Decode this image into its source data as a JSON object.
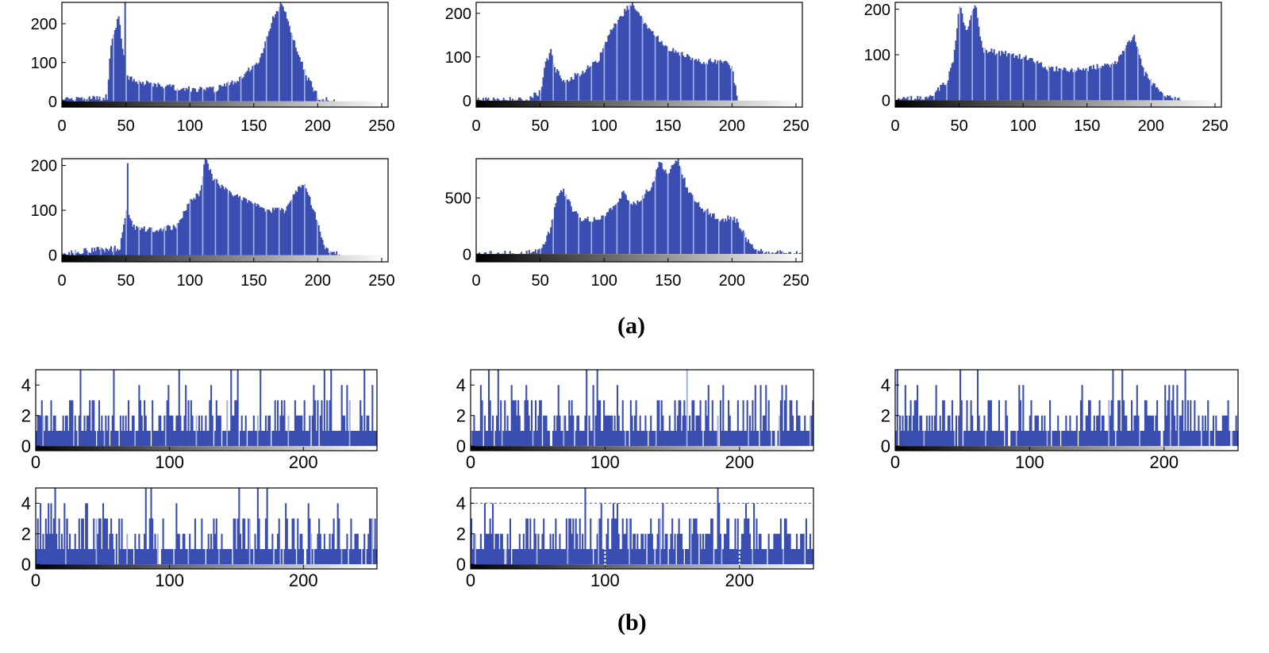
{
  "figure": {
    "label_a": "(a)",
    "label_b": "(b)",
    "bar_color": "#3a4eb2",
    "bar_highlight": "#a9b3de"
  },
  "chart_data": [
    {
      "panel": "(a)",
      "index": 1,
      "type": "bar",
      "title": "",
      "xlabel": "",
      "ylabel": "",
      "xlim": [
        0,
        255
      ],
      "ylim": [
        -15,
        255
      ],
      "xticks": [
        0,
        50,
        100,
        150,
        200,
        250
      ],
      "yticks": [
        0,
        100,
        200
      ],
      "profile": [
        [
          0,
          2
        ],
        [
          35,
          10
        ],
        [
          38,
          150
        ],
        [
          44,
          220
        ],
        [
          50,
          60
        ],
        [
          60,
          50
        ],
        [
          100,
          30
        ],
        [
          120,
          30
        ],
        [
          140,
          60
        ],
        [
          155,
          110
        ],
        [
          165,
          215
        ],
        [
          172,
          255
        ],
        [
          180,
          170
        ],
        [
          192,
          60
        ],
        [
          202,
          5
        ],
        [
          215,
          0
        ],
        [
          255,
          0
        ]
      ],
      "spikes": [
        [
          49,
          255
        ]
      ]
    },
    {
      "panel": "(a)",
      "index": 2,
      "type": "bar",
      "title": "",
      "xlabel": "",
      "ylabel": "",
      "xlim": [
        0,
        255
      ],
      "ylim": [
        -15,
        225
      ],
      "xticks": [
        0,
        50,
        100,
        150,
        200,
        250
      ],
      "yticks": [
        0,
        100,
        200
      ],
      "profile": [
        [
          0,
          0
        ],
        [
          40,
          3
        ],
        [
          50,
          20
        ],
        [
          53,
          75
        ],
        [
          58,
          115
        ],
        [
          62,
          70
        ],
        [
          68,
          45
        ],
        [
          80,
          60
        ],
        [
          95,
          90
        ],
        [
          105,
          160
        ],
        [
          115,
          200
        ],
        [
          122,
          225
        ],
        [
          135,
          160
        ],
        [
          150,
          120
        ],
        [
          175,
          90
        ],
        [
          195,
          90
        ],
        [
          200,
          75
        ],
        [
          205,
          0
        ],
        [
          255,
          0
        ]
      ],
      "spikes": []
    },
    {
      "panel": "(a)",
      "index": 3,
      "type": "bar",
      "title": "",
      "xlabel": "",
      "ylabel": "",
      "xlim": [
        0,
        255
      ],
      "ylim": [
        -15,
        215
      ],
      "xticks": [
        0,
        50,
        100,
        150,
        200,
        250
      ],
      "yticks": [
        0,
        100,
        200
      ],
      "profile": [
        [
          0,
          0
        ],
        [
          20,
          5
        ],
        [
          30,
          15
        ],
        [
          40,
          40
        ],
        [
          45,
          90
        ],
        [
          50,
          210
        ],
        [
          55,
          150
        ],
        [
          62,
          215
        ],
        [
          68,
          110
        ],
        [
          80,
          105
        ],
        [
          100,
          95
        ],
        [
          120,
          70
        ],
        [
          140,
          65
        ],
        [
          160,
          75
        ],
        [
          172,
          80
        ],
        [
          180,
          115
        ],
        [
          187,
          145
        ],
        [
          195,
          60
        ],
        [
          205,
          25
        ],
        [
          212,
          5
        ],
        [
          225,
          0
        ],
        [
          255,
          0
        ]
      ],
      "spikes": []
    },
    {
      "panel": "(a)",
      "index": 4,
      "type": "bar",
      "title": "",
      "xlabel": "",
      "ylabel": "",
      "xlim": [
        0,
        255
      ],
      "ylim": [
        -15,
        215
      ],
      "xticks": [
        0,
        50,
        100,
        150,
        200,
        250
      ],
      "yticks": [
        0,
        100,
        200
      ],
      "profile": [
        [
          0,
          3
        ],
        [
          20,
          10
        ],
        [
          45,
          15
        ],
        [
          50,
          100
        ],
        [
          55,
          65
        ],
        [
          70,
          55
        ],
        [
          90,
          65
        ],
        [
          100,
          120
        ],
        [
          108,
          140
        ],
        [
          112,
          215
        ],
        [
          118,
          170
        ],
        [
          130,
          140
        ],
        [
          145,
          120
        ],
        [
          160,
          100
        ],
        [
          175,
          100
        ],
        [
          185,
          150
        ],
        [
          190,
          160
        ],
        [
          198,
          90
        ],
        [
          205,
          20
        ],
        [
          212,
          3
        ],
        [
          220,
          0
        ],
        [
          255,
          0
        ]
      ],
      "spikes": [
        [
          51,
          205
        ]
      ]
    },
    {
      "panel": "(a)",
      "index": 5,
      "type": "bar",
      "title": "",
      "xlabel": "",
      "ylabel": "",
      "xlim": [
        0,
        255
      ],
      "ylim": [
        -70,
        850
      ],
      "xticks": [
        0,
        50,
        100,
        150,
        200,
        250
      ],
      "yticks": [
        0,
        500
      ],
      "profile": [
        [
          0,
          0
        ],
        [
          40,
          5
        ],
        [
          50,
          40
        ],
        [
          58,
          220
        ],
        [
          63,
          520
        ],
        [
          68,
          560
        ],
        [
          75,
          400
        ],
        [
          82,
          310
        ],
        [
          95,
          300
        ],
        [
          108,
          420
        ],
        [
          115,
          560
        ],
        [
          120,
          440
        ],
        [
          128,
          480
        ],
        [
          138,
          620
        ],
        [
          143,
          820
        ],
        [
          150,
          720
        ],
        [
          158,
          850
        ],
        [
          165,
          580
        ],
        [
          175,
          420
        ],
        [
          190,
          310
        ],
        [
          200,
          320
        ],
        [
          205,
          280
        ],
        [
          215,
          70
        ],
        [
          225,
          10
        ],
        [
          255,
          0
        ]
      ],
      "spikes": []
    },
    {
      "panel": "(b)",
      "index": 1,
      "type": "bar",
      "title": "",
      "xlabel": "",
      "ylabel": "",
      "xlim": [
        0,
        255
      ],
      "ylim": [
        -0.3,
        5
      ],
      "xticks": [
        0,
        100,
        200
      ],
      "yticks": [
        0,
        2,
        4
      ],
      "seed": 11,
      "ref_lines": []
    },
    {
      "panel": "(b)",
      "index": 2,
      "type": "bar",
      "title": "",
      "xlabel": "",
      "ylabel": "",
      "xlim": [
        0,
        255
      ],
      "ylim": [
        -0.3,
        5
      ],
      "xticks": [
        0,
        100,
        200
      ],
      "yticks": [
        0,
        2,
        4
      ],
      "seed": 23,
      "ref_lines": []
    },
    {
      "panel": "(b)",
      "index": 3,
      "type": "bar",
      "title": "",
      "xlabel": "",
      "ylabel": "",
      "xlim": [
        0,
        255
      ],
      "ylim": [
        -0.3,
        5
      ],
      "xticks": [
        0,
        100,
        200
      ],
      "yticks": [
        0,
        2,
        4
      ],
      "seed": 37,
      "ref_lines": []
    },
    {
      "panel": "(b)",
      "index": 4,
      "type": "bar",
      "title": "",
      "xlabel": "",
      "ylabel": "",
      "xlim": [
        0,
        255
      ],
      "ylim": [
        -0.3,
        5
      ],
      "xticks": [
        0,
        100,
        200
      ],
      "yticks": [
        0,
        2,
        4
      ],
      "seed": 53,
      "ref_lines": []
    },
    {
      "panel": "(b)",
      "index": 5,
      "type": "bar",
      "title": "",
      "xlabel": "",
      "ylabel": "",
      "xlim": [
        0,
        255
      ],
      "ylim": [
        -0.3,
        5
      ],
      "xticks": [
        0,
        100,
        200
      ],
      "yticks": [
        0,
        2,
        4
      ],
      "seed": 71,
      "ref_lines": [
        {
          "axis": "y",
          "value": 4
        },
        {
          "axis": "x",
          "value": 100
        },
        {
          "axis": "x",
          "value": 200
        }
      ]
    }
  ]
}
